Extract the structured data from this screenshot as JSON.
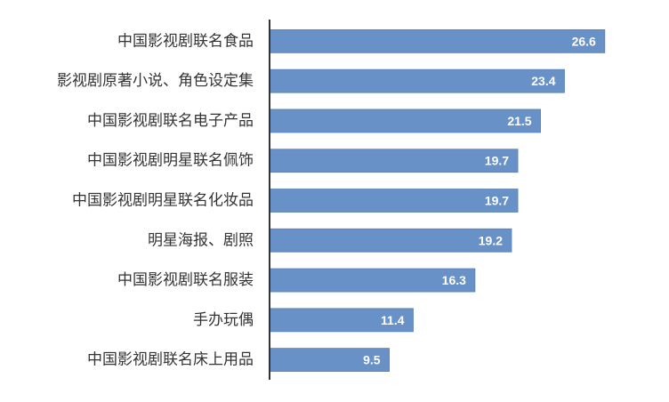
{
  "chart_data": {
    "type": "bar",
    "orientation": "horizontal",
    "categories": [
      "中国影视剧联名食品",
      "影视剧原著小说、角色设定集",
      "中国影视剧联名电子产品",
      "中国影视剧明星联名佩饰",
      "中国影视剧明星联名化妆品",
      "明星海报、剧照",
      "中国影视剧联名服装",
      "手办玩偶",
      "中国影视剧联名床上用品"
    ],
    "values": [
      26.6,
      23.4,
      21.5,
      19.7,
      19.7,
      19.2,
      16.3,
      11.4,
      9.5
    ],
    "color": "#6891c8",
    "xlim": [
      0,
      30
    ]
  }
}
